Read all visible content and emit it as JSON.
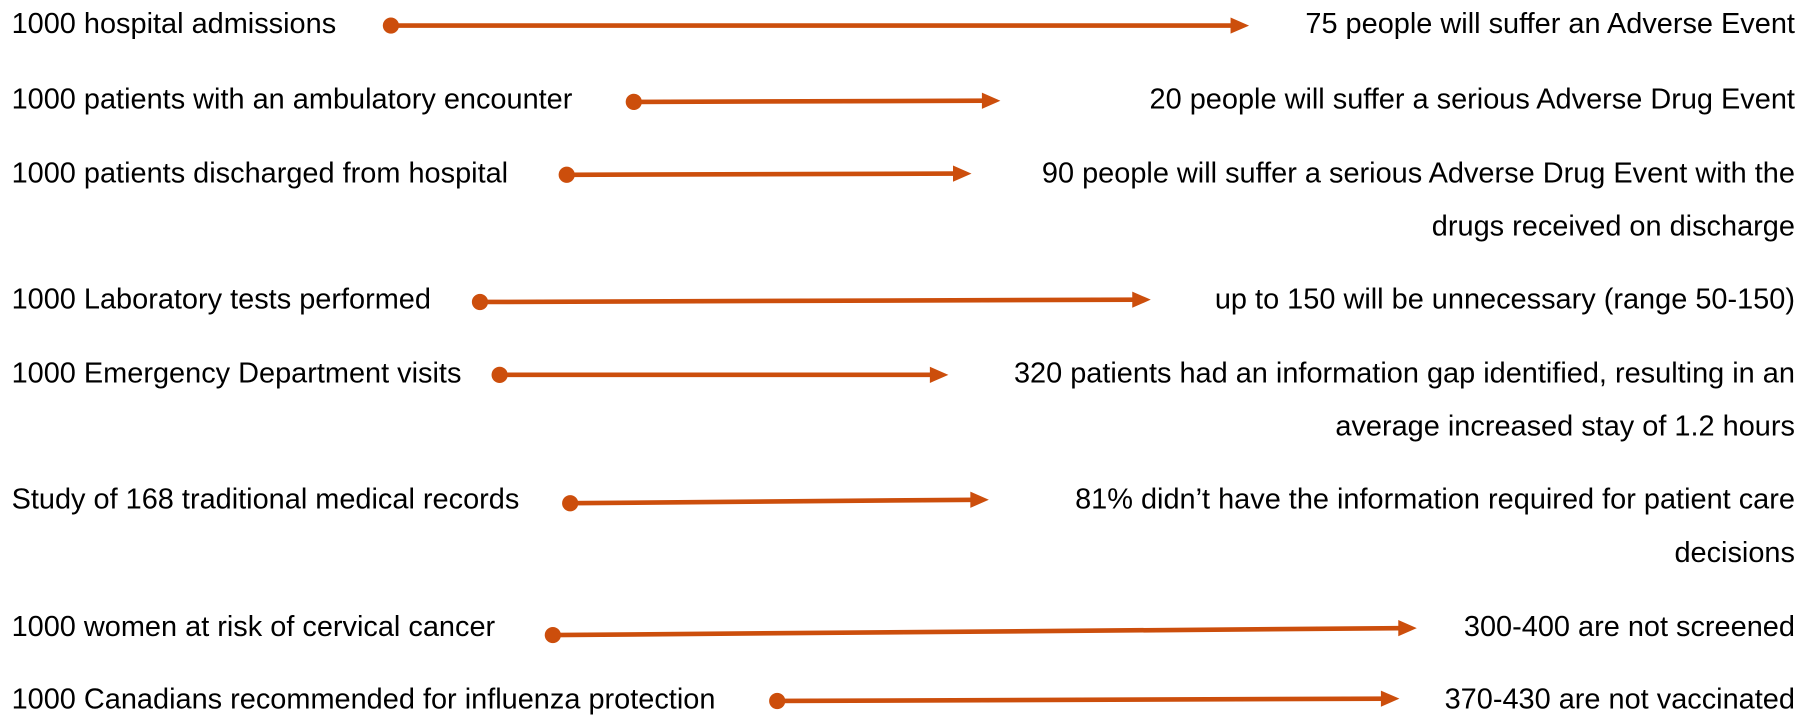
{
  "rows": [
    {
      "left": "1000 hospital admissions",
      "right": [
        "75 people will suffer an Adverse Event"
      ]
    },
    {
      "left": "1000 patients with an ambulatory encounter",
      "right": [
        "20 people will suffer a serious Adverse Drug Event"
      ]
    },
    {
      "left": "1000 patients discharged from hospital",
      "right": [
        "90 people will suffer a serious Adverse Drug Event with the",
        "drugs received on discharge"
      ]
    },
    {
      "left": "1000 Laboratory tests performed",
      "right": [
        "up to 150 will be unnecessary (range 50-150)"
      ]
    },
    {
      "left": "1000 Emergency Department visits",
      "right": [
        "320 patients had an information gap identified, resulting in an",
        "average increased stay of 1.2 hours"
      ]
    },
    {
      "left": "Study of 168 traditional medical records",
      "right": [
        "81% didn’t have the information required for patient care",
        "decisions"
      ]
    },
    {
      "left": "1000 women at risk of cervical cancer",
      "right": [
        "300-400 are not screened"
      ]
    },
    {
      "left": "1000 Canadians recommended for influenza protection",
      "right": [
        "370-430 are not vaccinated"
      ]
    }
  ]
}
